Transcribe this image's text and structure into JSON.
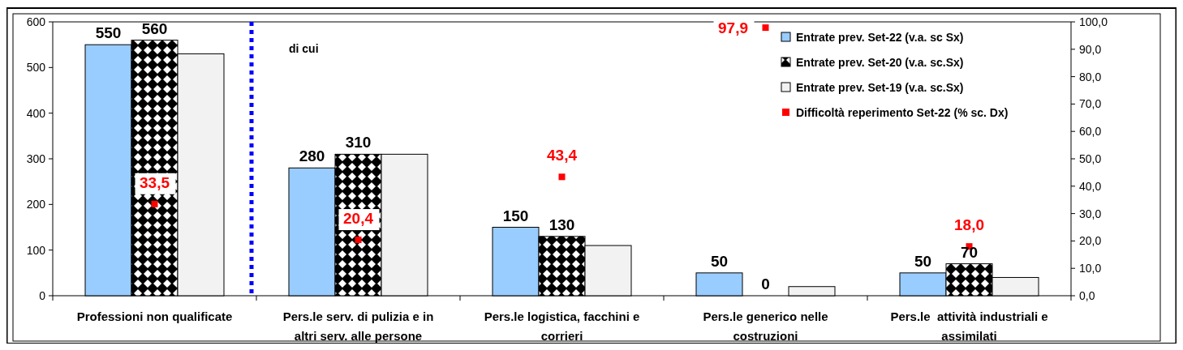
{
  "chart_data": {
    "type": "bar",
    "categories": [
      "Professioni non qualificate",
      "Pers.le serv. di pulizia e in altri serv. alle persone",
      "Pers.le logistica, facchini e corrieri",
      "Pers.le generico nelle costruzioni",
      "Pers.le  attività industriali e assimilati"
    ],
    "series": [
      {
        "name": "Entrate prev. Set-22 (v.a. sc Sx)",
        "color": "#99ccff",
        "values": [
          550,
          280,
          150,
          50,
          50
        ],
        "value_labels": [
          "550",
          "280",
          "150",
          "50",
          "50"
        ]
      },
      {
        "name": "Entrate prev. Set-20 (v.a. sc.Sx)",
        "color": "#000000",
        "values": [
          560,
          310,
          130,
          0,
          70
        ],
        "value_labels": [
          "560",
          "310",
          "130",
          "0",
          "70"
        ]
      },
      {
        "name": "Entrate prev. Set-19 (v.a. sc.Sx)",
        "color": "#f2f2f2",
        "values": [
          530,
          310,
          110,
          20,
          40
        ]
      },
      {
        "name": "Difficoltà reperimento Set-22 (% sc. Dx)",
        "type": "scatter",
        "axis": "y2",
        "marker": "square",
        "color": "#ff0000",
        "values": [
          33.5,
          20.4,
          43.4,
          97.9,
          18.0
        ],
        "value_labels": [
          "33,5",
          "20,4",
          "43,4",
          "97,9",
          "18,0"
        ]
      }
    ],
    "ylim": [
      0,
      600
    ],
    "yticks": [
      0,
      100,
      200,
      300,
      400,
      500,
      600
    ],
    "y2lim": [
      0,
      100
    ],
    "y2ticks": [
      {
        "value": 0,
        "label": "0,0"
      },
      {
        "value": 10,
        "label": "10,0"
      },
      {
        "value": 20,
        "label": "20,0"
      },
      {
        "value": 30,
        "label": "30,0"
      },
      {
        "value": 40,
        "label": "40,0"
      },
      {
        "value": 50,
        "label": "50,0"
      },
      {
        "value": 60,
        "label": "60,0"
      },
      {
        "value": 70,
        "label": "70,0"
      },
      {
        "value": 80,
        "label": "80,0"
      },
      {
        "value": 90,
        "label": "90,0"
      },
      {
        "value": 100,
        "label": "100,0"
      }
    ],
    "ref_lines": [
      {
        "axis": "x",
        "value": "Professioni non qualificate",
        "color": "#0000ff",
        "line_style": "dotted"
      }
    ],
    "annotations": [
      "di cui"
    ],
    "legend": "top right",
    "grid": false
  }
}
